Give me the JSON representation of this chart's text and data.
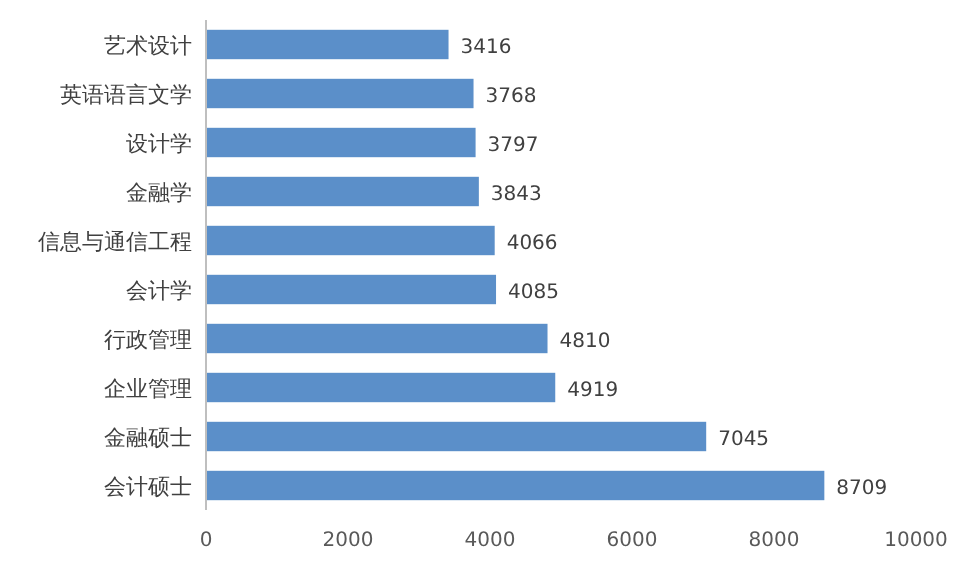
{
  "chart_data": {
    "type": "bar",
    "orientation": "horizontal",
    "categories": [
      "艺术设计",
      "英语语言文学",
      "设计学",
      "金融学",
      "信息与通信工程",
      "会计学",
      "行政管理",
      "企业管理",
      "金融硕士",
      "会计硕士"
    ],
    "values": [
      3416,
      3768,
      3797,
      3843,
      4066,
      4085,
      4810,
      4919,
      7045,
      8709
    ],
    "color": "#5b8fc9",
    "data_labels": true,
    "xlim": [
      0,
      10000
    ],
    "xticks": [
      0,
      2000,
      4000,
      6000,
      8000,
      10000
    ]
  }
}
